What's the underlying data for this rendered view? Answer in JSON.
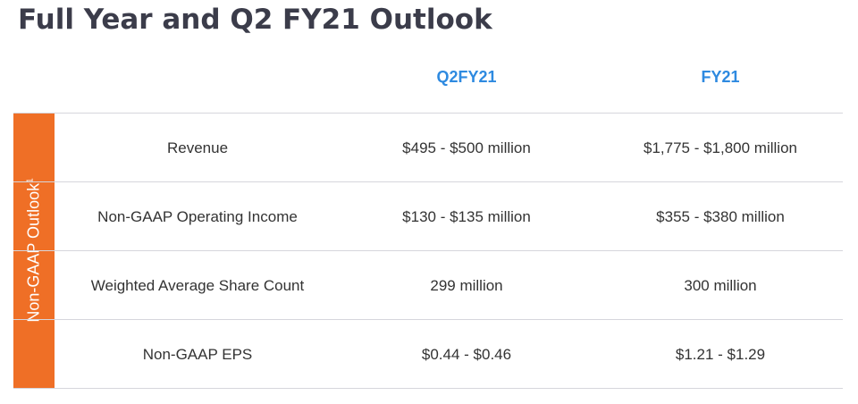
{
  "title": "Full Year and Q2 FY21 Outlook",
  "columns": [
    "Q2FY21",
    "FY21"
  ],
  "side_label": "Non-GAAP Outlook",
  "side_label_sup": "1",
  "rows": [
    {
      "label": "Revenue",
      "q2": "$495 - $500 million",
      "fy": "$1,775 - $1,800 million"
    },
    {
      "label": "Non-GAAP Operating Income",
      "q2": "$130 - $135 million",
      "fy": "$355 - $380 million"
    },
    {
      "label": "Weighted Average Share Count",
      "q2": "299 million",
      "fy": "300 million"
    },
    {
      "label": "Non-GAAP EPS",
      "q2": "$0.44 - $0.46",
      "fy": "$1.21 - $1.29"
    }
  ]
}
